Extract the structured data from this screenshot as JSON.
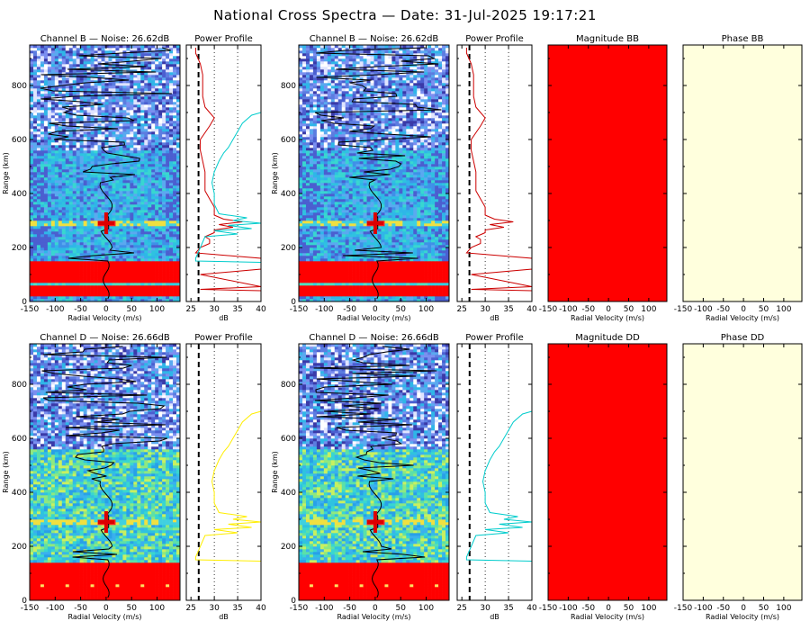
{
  "title": "National Cross Spectra — Date: 31-Jul-2025 19:17:21",
  "chart_data": [
    {
      "type": "heatmap",
      "title": "Channel B — Noise: 26.62dB",
      "xlabel": "Radial Velocity (m/s)",
      "ylabel": "Range (km)",
      "xlim": [
        -150,
        145
      ],
      "ylim": [
        0,
        950
      ],
      "xticks": [
        "-150",
        "-100",
        "-50",
        "0",
        "50",
        "100"
      ],
      "yticks": [
        "0",
        "200",
        "400",
        "600",
        "800"
      ],
      "overlay": "mean radial velocity profile (black line) with peak marker (red cross)",
      "red_band_km": [
        20,
        150
      ],
      "peak_range_km": 290
    },
    {
      "type": "line",
      "title": "Power Profile",
      "xlabel": "dB",
      "xlim": [
        24,
        40
      ],
      "ylim": [
        0,
        950
      ],
      "xticks": [
        "25",
        "30",
        "35",
        "40"
      ],
      "noise_line_db": 26.62,
      "series": [
        {
          "color": "#cc0000",
          "x": [
            40,
            27,
            40,
            27,
            40,
            40,
            26,
            27,
            29,
            29,
            28,
            30,
            30,
            34,
            31,
            36,
            32,
            30,
            30,
            29,
            28,
            28,
            28,
            27.5,
            27,
            27,
            29,
            30,
            29,
            28,
            27.5,
            27.5,
            27.5,
            27,
            26.5,
            26,
            26
          ],
          "y": [
            40,
            45,
            55,
            100,
            120,
            160,
            180,
            200,
            215,
            230,
            240,
            255,
            265,
            275,
            285,
            295,
            305,
            320,
            350,
            380,
            410,
            440,
            480,
            520,
            560,
            600,
            650,
            680,
            700,
            720,
            760,
            800,
            840,
            880,
            900,
            920,
            940
          ]
        },
        {
          "color": "#00cccc",
          "x": [
            40,
            26,
            26,
            27,
            28,
            35,
            30,
            38,
            33,
            40,
            34,
            37,
            31,
            30,
            30,
            29.5,
            30,
            31,
            32,
            33,
            34,
            35,
            36,
            38,
            40
          ],
          "y": [
            145,
            150,
            160,
            200,
            240,
            250,
            262,
            270,
            282,
            290,
            300,
            310,
            325,
            360,
            400,
            440,
            480,
            520,
            550,
            570,
            600,
            630,
            660,
            690,
            700
          ]
        }
      ]
    },
    {
      "type": "heatmap",
      "title": "Channel B — Noise: 26.62dB",
      "xlabel": "Radial Velocity (m/s)",
      "ylabel": "Range (km)",
      "xlim": [
        -150,
        145
      ],
      "ylim": [
        0,
        950
      ],
      "xticks": [
        "-150",
        "-100",
        "-50",
        "0",
        "50",
        "100"
      ],
      "yticks": [
        "0",
        "200",
        "400",
        "600",
        "800"
      ],
      "overlay": "mean radial velocity profile (black line) with peak marker (red cross)",
      "red_band_km": [
        20,
        150
      ],
      "peak_range_km": 290
    },
    {
      "type": "line",
      "title": "Power Profile",
      "xlabel": "dB",
      "xlim": [
        24,
        40
      ],
      "ylim": [
        0,
        950
      ],
      "xticks": [
        "25",
        "30",
        "35",
        "40"
      ],
      "noise_line_db": 26.62,
      "series": [
        {
          "color": "#cc0000",
          "x": [
            40,
            27,
            40,
            27,
            40,
            40,
            26,
            27,
            29,
            29,
            28,
            30,
            30,
            34,
            31,
            36,
            32,
            30,
            30,
            29,
            28,
            28,
            28,
            27.5,
            27,
            27,
            29,
            30,
            29,
            28,
            27.5,
            27.5,
            27.5,
            27,
            26.5,
            26,
            26
          ],
          "y": [
            40,
            45,
            55,
            100,
            120,
            160,
            180,
            200,
            215,
            230,
            240,
            255,
            265,
            275,
            285,
            295,
            305,
            320,
            350,
            380,
            410,
            440,
            480,
            520,
            560,
            600,
            650,
            680,
            700,
            720,
            760,
            800,
            840,
            880,
            900,
            920,
            940
          ]
        }
      ]
    },
    {
      "type": "heatmap",
      "title": "Magnitude BB",
      "xlabel": "Radial Velocity (m/s)",
      "xlim": [
        -150,
        145
      ],
      "ylim": [
        0,
        950
      ],
      "xticks": [
        "-150",
        "-100",
        "-50",
        "0",
        "50",
        "100"
      ],
      "fill": "#ff0000"
    },
    {
      "type": "heatmap",
      "title": "Phase BB",
      "xlabel": "Radial Velocity (m/s)",
      "xlim": [
        -150,
        145
      ],
      "ylim": [
        0,
        950
      ],
      "xticks": [
        "-150",
        "-100",
        "-50",
        "0",
        "50",
        "100"
      ],
      "fill": "#ffffdd"
    },
    {
      "type": "heatmap",
      "title": "Channel D — Noise: 26.66dB",
      "xlabel": "Radial Velocity (m/s)",
      "ylabel": "Range (km)",
      "xlim": [
        -150,
        145
      ],
      "ylim": [
        0,
        950
      ],
      "xticks": [
        "-150",
        "-100",
        "-50",
        "0",
        "50",
        "100"
      ],
      "yticks": [
        "0",
        "200",
        "400",
        "600",
        "800"
      ],
      "overlay": "mean radial velocity profile (black line) with peak marker (red cross)",
      "red_band_km": [
        0,
        140
      ],
      "peak_range_km": 290
    },
    {
      "type": "line",
      "title": "Power Profile",
      "xlabel": "dB",
      "xlim": [
        24,
        40
      ],
      "ylim": [
        0,
        950
      ],
      "xticks": [
        "25",
        "30",
        "35",
        "40"
      ],
      "noise_line_db": 26.66,
      "series": [
        {
          "color": "#ffee00",
          "x": [
            40,
            26,
            26,
            27,
            28,
            35,
            30,
            38,
            33,
            40,
            34,
            37,
            31,
            30,
            30,
            29.5,
            30,
            31,
            32,
            33,
            34,
            35,
            36,
            38,
            40
          ],
          "y": [
            145,
            150,
            160,
            200,
            240,
            250,
            262,
            270,
            282,
            290,
            300,
            310,
            325,
            360,
            400,
            440,
            480,
            520,
            550,
            570,
            600,
            630,
            660,
            690,
            700
          ]
        }
      ]
    },
    {
      "type": "heatmap",
      "title": "Channel D — Noise: 26.66dB",
      "xlabel": "Radial Velocity (m/s)",
      "ylabel": "Range (km)",
      "xlim": [
        -150,
        145
      ],
      "ylim": [
        0,
        950
      ],
      "xticks": [
        "-150",
        "-100",
        "-50",
        "0",
        "50",
        "100"
      ],
      "yticks": [
        "0",
        "200",
        "400",
        "600",
        "800"
      ],
      "overlay": "mean radial velocity profile (black line) with peak marker (red cross)",
      "red_band_km": [
        0,
        140
      ],
      "peak_range_km": 290
    },
    {
      "type": "line",
      "title": "Power Profile",
      "xlabel": "dB",
      "xlim": [
        24,
        40
      ],
      "ylim": [
        0,
        950
      ],
      "xticks": [
        "25",
        "30",
        "35",
        "40"
      ],
      "noise_line_db": 26.66,
      "series": [
        {
          "color": "#00cccc",
          "x": [
            40,
            26,
            26,
            27,
            28,
            35,
            30,
            38,
            33,
            40,
            34,
            37,
            31,
            30,
            30,
            29.5,
            30,
            31,
            32,
            33,
            34,
            35,
            36,
            38,
            40
          ],
          "y": [
            145,
            150,
            160,
            200,
            240,
            250,
            262,
            270,
            282,
            290,
            300,
            310,
            325,
            360,
            400,
            440,
            480,
            520,
            550,
            570,
            600,
            630,
            660,
            690,
            700
          ]
        }
      ]
    },
    {
      "type": "heatmap",
      "title": "Magnitude DD",
      "xlabel": "Radial Velocity (m/s)",
      "xlim": [
        -150,
        145
      ],
      "ylim": [
        0,
        950
      ],
      "xticks": [
        "-150",
        "-100",
        "-50",
        "0",
        "50",
        "100"
      ],
      "fill": "#ff0000"
    },
    {
      "type": "heatmap",
      "title": "Phase DD",
      "xlabel": "Radial Velocity (m/s)",
      "xlim": [
        -150,
        145
      ],
      "ylim": [
        0,
        950
      ],
      "xticks": [
        "-150",
        "-100",
        "-50",
        "0",
        "50",
        "100"
      ],
      "fill": "#ffffdd"
    }
  ]
}
